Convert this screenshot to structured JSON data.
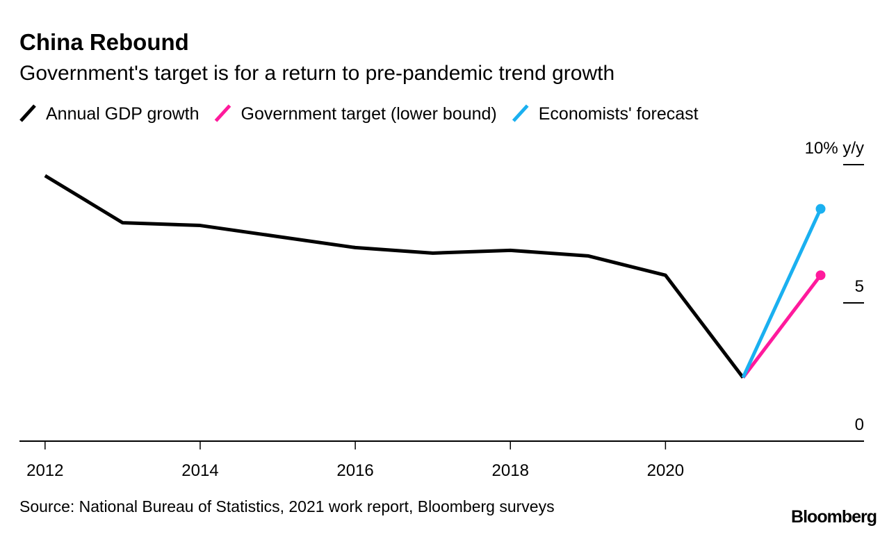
{
  "chart_data": {
    "type": "line",
    "title": "China Rebound",
    "subtitle": "Government's target is for a return to pre-pandemic trend growth",
    "source": "Source: National Bureau of Statistics, 2021 work report, Bloomberg surveys",
    "brand": "Bloomberg",
    "series": [
      {
        "name": "Annual GDP growth",
        "color": "#000000",
        "x": [
          2012,
          2013,
          2014,
          2015,
          2016,
          2017,
          2018,
          2019,
          2020,
          2021
        ],
        "values": [
          9.6,
          7.9,
          7.8,
          7.4,
          7.0,
          6.8,
          6.9,
          6.7,
          6.0,
          2.3
        ],
        "end_marker": false
      },
      {
        "name": "Government target (lower bound)",
        "color": "#ff1a9c",
        "x": [
          2021,
          2022
        ],
        "values": [
          2.3,
          6.0
        ],
        "end_marker": true
      },
      {
        "name": "Economists' forecast",
        "color": "#1ab0f0",
        "x": [
          2021,
          2022
        ],
        "values": [
          2.3,
          8.4
        ],
        "end_marker": true
      }
    ],
    "xlim": [
      2011.67,
      2022.56
    ],
    "xticks": [
      2012,
      2014,
      2016,
      2018,
      2020
    ],
    "ylim": [
      0,
      10
    ],
    "yticks": [
      0,
      5,
      {
        "value": 10,
        "label": "10% y/y"
      }
    ]
  }
}
